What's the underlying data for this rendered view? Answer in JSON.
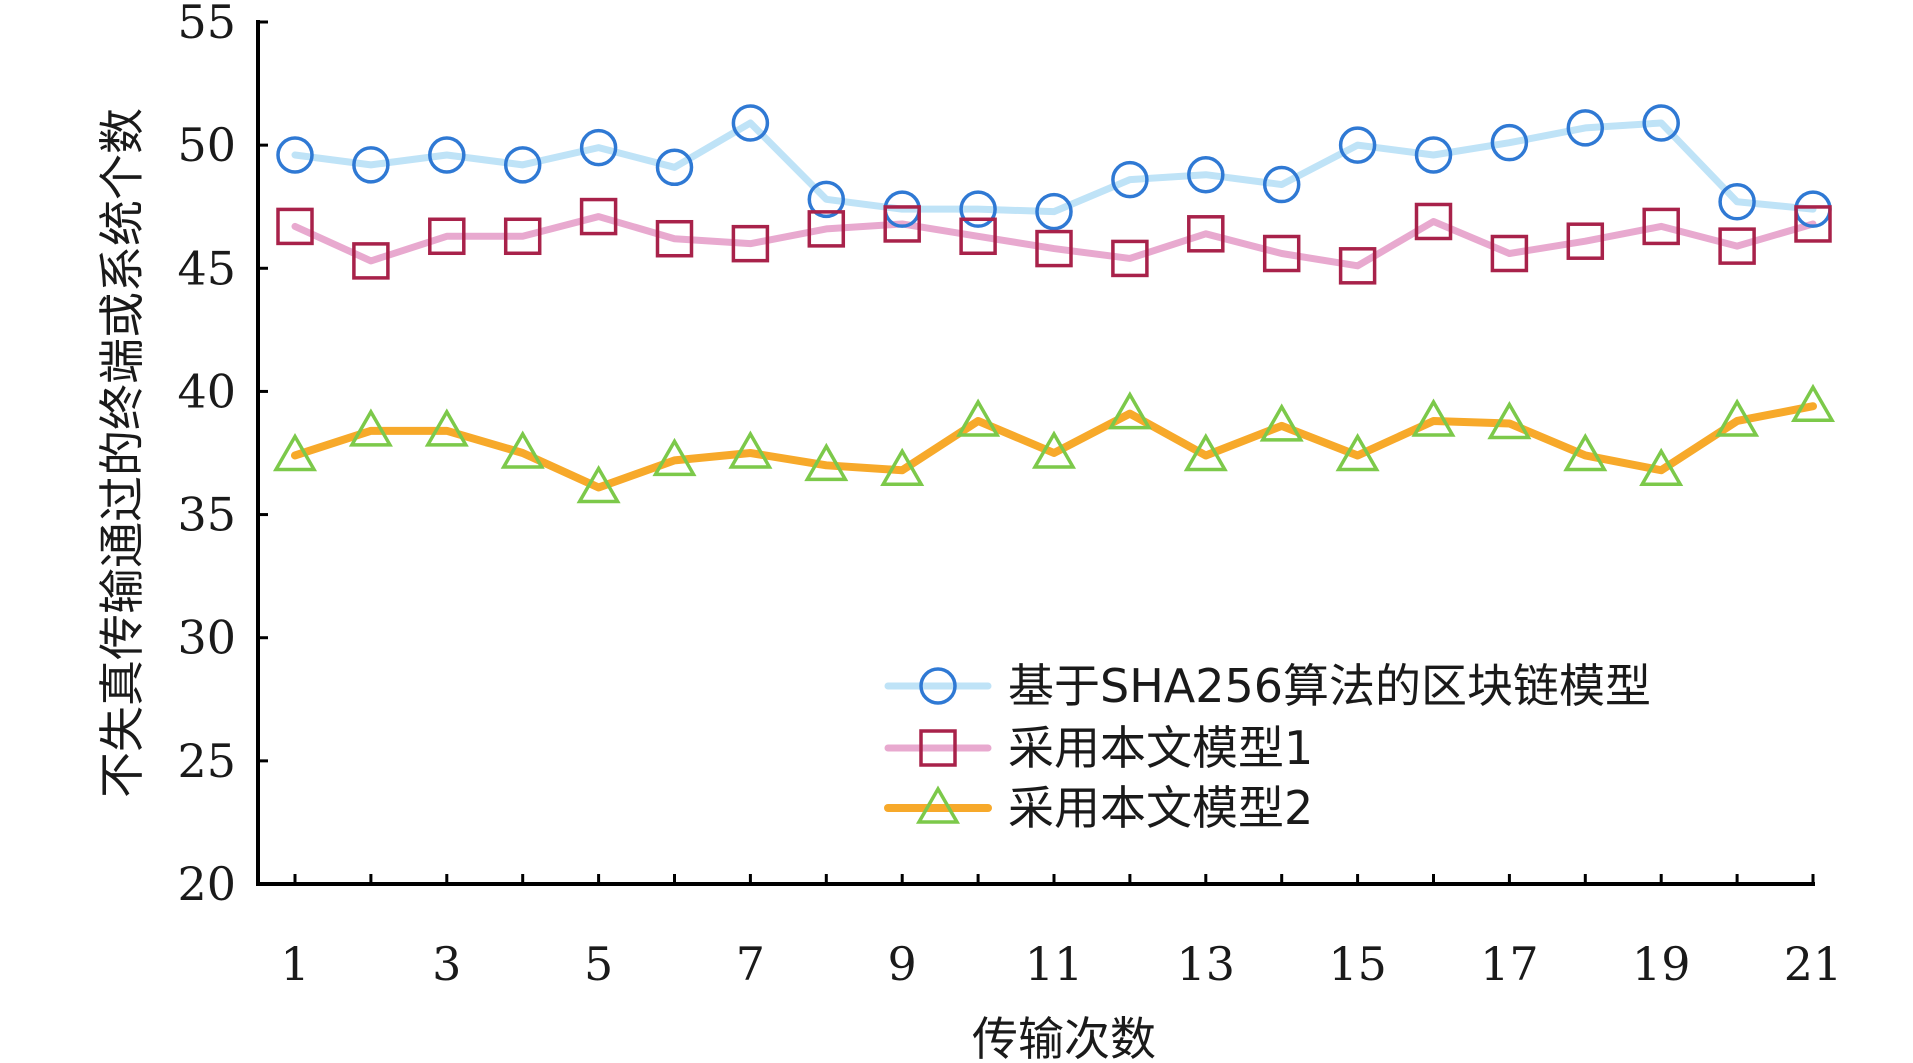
{
  "chart_data": {
    "type": "line",
    "xlabel": "传输次数",
    "ylabel": "不失真传输通过的终端或系统个数",
    "xlim": [
      0.5,
      21
    ],
    "ylim": [
      20,
      55
    ],
    "yticks": [
      20,
      25,
      30,
      35,
      40,
      45,
      50,
      55
    ],
    "xticks": [
      1,
      3,
      5,
      7,
      9,
      11,
      13,
      15,
      17,
      19,
      21
    ],
    "grid": false,
    "legend_position": "bottom-right",
    "x": [
      1,
      2,
      3,
      4,
      5,
      6,
      7,
      8,
      9,
      10,
      11,
      12,
      13,
      14,
      15,
      16,
      17,
      18,
      19,
      20,
      21
    ],
    "series": [
      {
        "name": "基于SHA256算法的区块链模型",
        "marker": "circle",
        "line_color": "#bfe3f7",
        "marker_color": "#2f79d4",
        "values": [
          49.6,
          49.2,
          49.6,
          49.2,
          49.9,
          49.1,
          50.9,
          47.8,
          47.4,
          47.4,
          47.3,
          48.6,
          48.8,
          48.4,
          50.0,
          49.6,
          50.1,
          50.7,
          50.9,
          47.7,
          47.4
        ]
      },
      {
        "name": "采用本文模型1",
        "marker": "square",
        "line_color": "#e8a9cf",
        "marker_color": "#a8224a",
        "values": [
          46.7,
          45.3,
          46.3,
          46.3,
          47.1,
          46.2,
          46.0,
          46.6,
          46.8,
          46.3,
          45.8,
          45.4,
          46.4,
          45.6,
          45.1,
          46.9,
          45.6,
          46.1,
          46.7,
          45.9,
          46.8
        ]
      },
      {
        "name": "采用本文模型2",
        "marker": "triangle",
        "line_color": "#f7a92a",
        "marker_color": "#7cc94a",
        "values": [
          37.4,
          38.4,
          38.4,
          37.5,
          36.1,
          37.2,
          37.5,
          37.0,
          36.8,
          38.8,
          37.5,
          39.1,
          37.4,
          38.6,
          37.4,
          38.8,
          38.7,
          37.4,
          36.8,
          38.8,
          39.4
        ]
      }
    ]
  }
}
